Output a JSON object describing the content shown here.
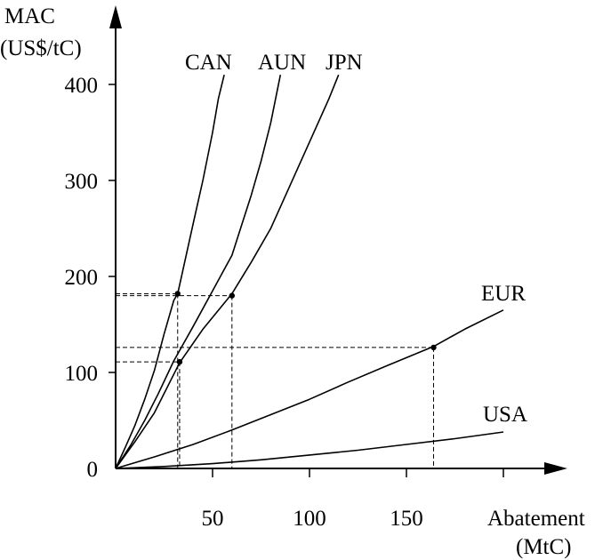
{
  "chart_data": {
    "type": "line",
    "title": "",
    "ylabel_line1": "MAC",
    "ylabel_line2": "(US$/tC)",
    "xlabel_line1": "Abatement",
    "xlabel_line2": "(MtC)",
    "xlim": [
      0,
      200
    ],
    "ylim": [
      0,
      420
    ],
    "x_ticks": [
      50,
      100,
      150
    ],
    "x_tick_labels": [
      "50",
      "100",
      "150"
    ],
    "y_ticks": [
      0,
      100,
      200,
      300,
      400
    ],
    "y_tick_labels": [
      "0",
      "100",
      "200",
      "300",
      "400"
    ],
    "grid": false,
    "series": [
      {
        "name": "CAN",
        "x": [
          0,
          5,
          10,
          15,
          20,
          25,
          30,
          32,
          40,
          45,
          50,
          53,
          56
        ],
        "y": [
          0,
          22,
          45,
          72,
          102,
          140,
          175,
          182,
          255,
          300,
          350,
          385,
          410
        ]
      },
      {
        "name": "AUN",
        "x": [
          0,
          8,
          15,
          22,
          30,
          40,
          50,
          60,
          70,
          75,
          80,
          85
        ],
        "y": [
          0,
          25,
          50,
          78,
          112,
          148,
          185,
          222,
          285,
          320,
          360,
          410
        ]
      },
      {
        "name": "JPN",
        "x": [
          0,
          10,
          20,
          33,
          45,
          60,
          70,
          80,
          90,
          100,
          110,
          115
        ],
        "y": [
          0,
          28,
          58,
          110,
          145,
          182,
          215,
          250,
          295,
          340,
          385,
          410
        ]
      },
      {
        "name": "EUR",
        "x": [
          0,
          20,
          40,
          60,
          80,
          100,
          120,
          140,
          164,
          180,
          200
        ],
        "y": [
          0,
          12,
          25,
          40,
          56,
          72,
          90,
          107,
          127,
          145,
          165
        ]
      },
      {
        "name": "USA",
        "x": [
          0,
          25,
          50,
          75,
          100,
          125,
          150,
          175,
          200
        ],
        "y": [
          0,
          2,
          5,
          9,
          14,
          19,
          25,
          31,
          38
        ]
      }
    ],
    "markers": [
      {
        "x": 32,
        "y": 182
      },
      {
        "x": 60,
        "y": 180
      },
      {
        "x": 33,
        "y": 111
      },
      {
        "x": 164,
        "y": 126
      }
    ]
  }
}
